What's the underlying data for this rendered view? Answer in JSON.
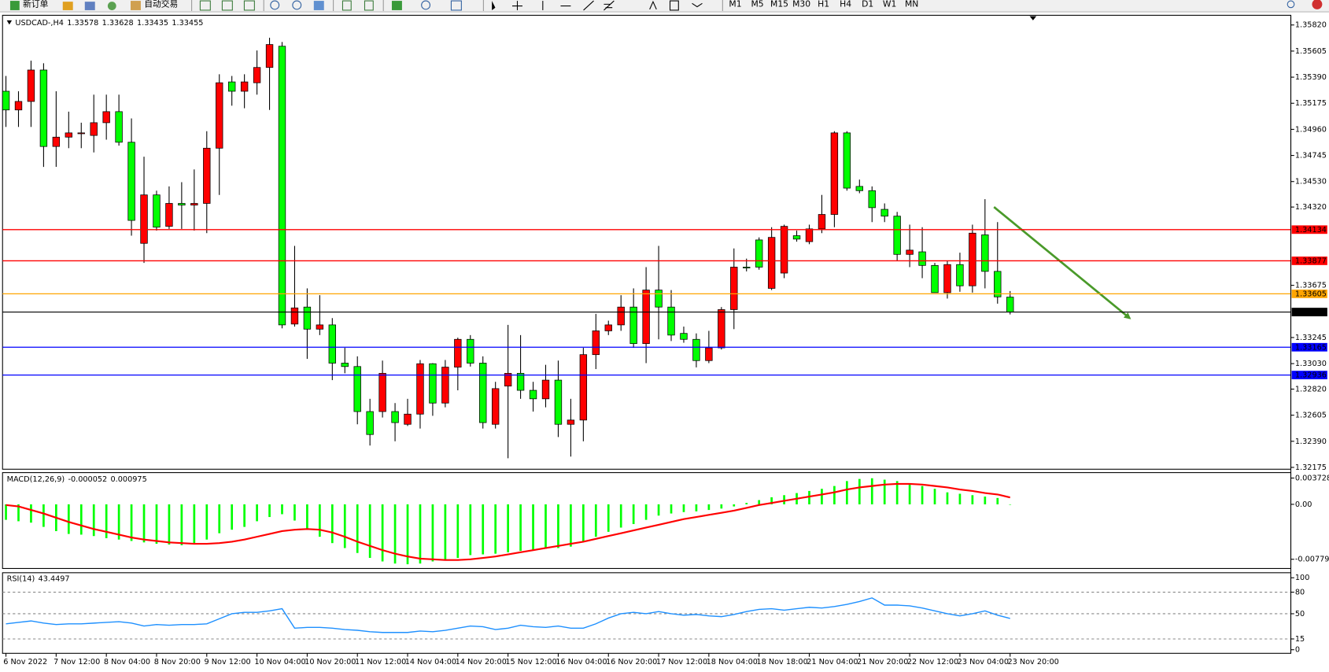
{
  "toolbar": {
    "buttons": [
      "新订单",
      "自动交易"
    ],
    "timeframes": [
      "M1",
      "M5",
      "M15",
      "M30",
      "H1",
      "H4",
      "D1",
      "W1",
      "MN"
    ]
  },
  "chart_data": [
    {
      "type": "candlestick",
      "title": "USDCAD-,H4",
      "categories": [
        "6 Nov 2022",
        null,
        null,
        null,
        "7 Nov 12:00",
        null,
        null,
        null,
        "8 Nov 04:00",
        null,
        null,
        null,
        "8 Nov 20:00",
        null,
        null,
        null,
        "9 Nov 12:00",
        null,
        null,
        null,
        "10 Nov 04:00",
        null,
        null,
        null,
        "10 Nov 20:00",
        null,
        null,
        null,
        "11 Nov 12:00",
        null,
        null,
        null,
        "14 Nov 04:00",
        null,
        null,
        null,
        "14 Nov 20:00",
        null,
        null,
        null,
        "15 Nov 12:00",
        null,
        null,
        null,
        "16 Nov 04:00",
        null,
        null,
        null,
        "16 Nov 20:00",
        null,
        null,
        null,
        "17 Nov 12:00",
        null,
        null,
        null,
        "18 Nov 04:00",
        null,
        null,
        null,
        "18 Nov 18:00",
        null,
        null,
        null,
        "21 Nov 04:00",
        null,
        null,
        null,
        "21 Nov 20:00",
        null,
        null,
        null,
        "22 Nov 12:00",
        null,
        null,
        null,
        "23 Nov 04:00",
        null,
        null,
        null,
        "23 Nov 20:00"
      ],
      "open": [
        1.35274,
        1.3512,
        1.3519,
        1.35449,
        1.34819,
        1.34896,
        1.34924,
        1.3491,
        1.35015,
        1.35106,
        1.34854,
        1.34021,
        1.3442,
        1.34161,
        1.3435,
        1.34336,
        1.3435,
        1.34805,
        1.35351,
        1.35274,
        1.35344,
        1.3547,
        1.35645,
        1.33356,
        1.33496,
        1.33314,
        1.33349,
        1.33034,
        1.33006,
        1.32635,
        1.32635,
        1.32635,
        1.3253,
        1.32614,
        1.33029,
        1.32705,
        1.33001,
        1.3323,
        1.33034,
        1.3253,
        1.32845,
        1.3295,
        1.3281,
        1.3274,
        1.32894,
        1.3253,
        1.32565,
        1.33104,
        1.333,
        1.33349,
        1.33496,
        1.33195,
        1.33636,
        1.33496,
        1.33279,
        1.3323,
        1.33055,
        1.3316,
        1.33475,
        1.33825,
        1.34049,
        1.3365,
        1.33776,
        1.34084,
        1.34035,
        1.3414,
        1.34259,
        1.34931,
        1.3449,
        1.34455,
        1.34301,
        1.34245,
        1.3393,
        1.33951,
        1.33839,
        1.33615,
        1.33846,
        1.33671,
        1.34091,
        1.3379,
        1.33578
      ],
      "high": [
        1.354,
        1.35274,
        1.35526,
        1.35505,
        1.35274,
        1.35106,
        1.35015,
        1.35246,
        1.35246,
        1.35246,
        1.3505,
        1.34735,
        1.34455,
        1.3449,
        1.34525,
        1.3463,
        1.34945,
        1.35414,
        1.354,
        1.35414,
        1.3561,
        1.35715,
        1.3568,
        1.34,
        1.3365,
        1.33594,
        1.33405,
        1.3316,
        1.3309,
        1.3274,
        1.33055,
        1.32705,
        1.3274,
        1.3306,
        1.33034,
        1.3306,
        1.33244,
        1.33265,
        1.3309,
        1.3288,
        1.33349,
        1.33265,
        1.3288,
        1.3302,
        1.33055,
        1.3274,
        1.3316,
        1.3344,
        1.33384,
        1.33594,
        1.3365,
        1.33825,
        1.34,
        1.33636,
        1.33335,
        1.33279,
        1.333,
        1.33496,
        1.33979,
        1.33895,
        1.3407,
        1.34154,
        1.34175,
        1.34126,
        1.34175,
        1.3442,
        1.34945,
        1.34945,
        1.34546,
        1.3449,
        1.3435,
        1.3428,
        1.34175,
        1.34154,
        1.3386,
        1.33874,
        1.33944,
        1.34175,
        1.34385,
        1.34196,
        1.33628
      ],
      "low": [
        1.3498,
        1.3498,
        1.3498,
        1.34651,
        1.34651,
        1.34805,
        1.34805,
        1.3477,
        1.34875,
        1.34826,
        1.34084,
        1.3386,
        1.34126,
        1.3414,
        1.3414,
        1.34126,
        1.34105,
        1.3442,
        1.35155,
        1.35134,
        1.35246,
        1.3512,
        1.33321,
        1.33335,
        1.33069,
        1.33265,
        1.32894,
        1.3295,
        1.3253,
        1.32355,
        1.32586,
        1.3239,
        1.32516,
        1.32495,
        1.326,
        1.3267,
        1.3281,
        1.33006,
        1.32495,
        1.32495,
        1.3225,
        1.3274,
        1.32635,
        1.3267,
        1.32425,
        1.32264,
        1.3239,
        1.32985,
        1.33265,
        1.333,
        1.3316,
        1.33034,
        1.3323,
        1.33216,
        1.33202,
        1.32999,
        1.33034,
        1.33146,
        1.33314,
        1.3379,
        1.33804,
        1.33636,
        1.33734,
        1.34035,
        1.34014,
        1.34105,
        1.34154,
        1.34455,
        1.34434,
        1.34196,
        1.34196,
        1.33874,
        1.33825,
        1.33734,
        1.33615,
        1.33566,
        1.33622,
        1.33615,
        1.3365,
        1.33524,
        1.33435
      ],
      "close": [
        1.3512,
        1.3519,
        1.35449,
        1.34819,
        1.34896,
        1.34931,
        1.34931,
        1.35015,
        1.35106,
        1.34854,
        1.3421,
        1.3442,
        1.34154,
        1.3435,
        1.34336,
        1.3435,
        1.34805,
        1.35344,
        1.35274,
        1.35351,
        1.3547,
        1.35659,
        1.33349,
        1.33489,
        1.33314,
        1.33349,
        1.33034,
        1.33006,
        1.32635,
        1.32446,
        1.3295,
        1.32544,
        1.32614,
        1.33029,
        1.32705,
        1.33001,
        1.3323,
        1.33034,
        1.32544,
        1.32824,
        1.3295,
        1.3281,
        1.3274,
        1.32894,
        1.3253,
        1.32565,
        1.33104,
        1.333,
        1.33349,
        1.33496,
        1.33195,
        1.33636,
        1.33496,
        1.33265,
        1.3323,
        1.33055,
        1.3316,
        1.33475,
        1.33825,
        1.33818,
        1.33825,
        1.3407,
        1.34161,
        1.34056,
        1.3414,
        1.34259,
        1.34931,
        1.34476,
        1.34455,
        1.34315,
        1.34245,
        1.3393,
        1.33965,
        1.33839,
        1.33615,
        1.33846,
        1.33671,
        1.34105,
        1.3379,
        1.3358,
        1.33455
      ],
      "up_color": "#ff0000",
      "down_color": "#00ff00",
      "ylim": [
        1.3216,
        1.359
      ],
      "yticks": [
        {
          "value": 1.3582,
          "label": "1.35820"
        },
        1.35605,
        {
          "value": 1.3539,
          "label": "1.35390"
        },
        1.35175,
        {
          "value": 1.3496,
          "label": "1.34960"
        },
        1.34745,
        {
          "value": 1.3453,
          "label": "1.34530"
        },
        {
          "value": 1.3432,
          "label": "1.34320"
        },
        1.33675,
        1.33245,
        {
          "value": 1.3303,
          "label": "1.33030"
        },
        {
          "value": 1.3282,
          "label": "1.32820"
        },
        1.32605,
        {
          "value": 1.3239,
          "label": "1.32390"
        },
        1.32175
      ],
      "hlines": [
        {
          "value": 1.34134,
          "color": "#ff0000"
        },
        {
          "value": 1.33877,
          "color": "#ff0000"
        },
        {
          "value": 1.33605,
          "color": "#ffa500"
        },
        {
          "value": 1.33165,
          "color": "#0000ff"
        },
        {
          "value": 1.32936,
          "color": "#0000ff"
        }
      ]
    },
    {
      "type": "combo",
      "title": "MACD(12,26,9)",
      "series": [
        {
          "type": "bar",
          "color": "#00ff00",
          "values": [
            -0.0022,
            -0.0024,
            -0.0026,
            -0.0032,
            -0.0038,
            -0.0042,
            -0.0043,
            -0.0045,
            -0.0048,
            -0.005,
            -0.0052,
            -0.0054,
            -0.0056,
            -0.0057,
            -0.0058,
            -0.0056,
            -0.005,
            -0.0041,
            -0.0036,
            -0.0032,
            -0.0024,
            -0.0018,
            -0.0014,
            -0.0023,
            -0.0035,
            -0.0046,
            -0.0055,
            -0.0062,
            -0.0069,
            -0.0076,
            -0.0081,
            -0.0084,
            -0.0085,
            -0.0084,
            -0.0081,
            -0.0079,
            -0.0076,
            -0.0072,
            -0.0071,
            -0.007,
            -0.0068,
            -0.0066,
            -0.0065,
            -0.0063,
            -0.0062,
            -0.006,
            -0.0053,
            -0.0046,
            -0.0039,
            -0.0033,
            -0.0028,
            -0.0022,
            -0.0016,
            -0.0013,
            -0.0011,
            -0.001,
            -0.0008,
            -0.0006,
            -0.0003,
            0.0002,
            0.0006,
            0.001,
            0.0013,
            0.0016,
            0.0019,
            0.0022,
            0.0026,
            0.0033,
            0.0036,
            0.0037,
            0.0035,
            0.0033,
            0.003,
            0.0026,
            0.0022,
            0.0017,
            0.0015,
            0.0013,
            0.0011,
            0.0009,
            -5.2e-05
          ]
        },
        {
          "type": "line",
          "color": "#ff0000",
          "values": [
            -0.0001,
            -0.0003,
            -0.0008,
            -0.0013,
            -0.0019,
            -0.0025,
            -0.003,
            -0.0035,
            -0.0039,
            -0.0043,
            -0.0047,
            -0.005,
            -0.0052,
            -0.0054,
            -0.0055,
            -0.0056,
            -0.0056,
            -0.0055,
            -0.0053,
            -0.005,
            -0.0046,
            -0.0042,
            -0.0038,
            -0.0036,
            -0.0035,
            -0.0036,
            -0.004,
            -0.0046,
            -0.0053,
            -0.0059,
            -0.0065,
            -0.007,
            -0.0074,
            -0.0077,
            -0.0078,
            -0.0079,
            -0.0079,
            -0.0078,
            -0.0076,
            -0.0074,
            -0.0071,
            -0.0068,
            -0.0065,
            -0.0062,
            -0.0059,
            -0.0056,
            -0.0053,
            -0.0049,
            -0.0045,
            -0.0041,
            -0.0037,
            -0.0033,
            -0.0029,
            -0.0025,
            -0.0021,
            -0.0018,
            -0.0015,
            -0.0012,
            -0.0009,
            -0.0005,
            -0.0001,
            0.0002,
            0.0005,
            0.0008,
            0.0011,
            0.0014,
            0.0017,
            0.0021,
            0.0024,
            0.0026,
            0.0028,
            0.0029,
            0.0029,
            0.0028,
            0.0026,
            0.0024,
            0.0021,
            0.0019,
            0.0016,
            0.0014,
            0.000975
          ]
        }
      ],
      "ylim": [
        -0.0091,
        0.0045
      ],
      "yticks": [
        0.003728,
        {
          "value": 0,
          "label": "0.00"
        },
        -0.007792
      ]
    },
    {
      "type": "line",
      "title": "RSI(14)",
      "color": "#1e90ff",
      "values": [
        36,
        38,
        40,
        37,
        35,
        36,
        36,
        37,
        38,
        39,
        37,
        33,
        35,
        34,
        35,
        35,
        36,
        43,
        50,
        52,
        52,
        54,
        57,
        30,
        31,
        31,
        30,
        28,
        27,
        25,
        24,
        24,
        24,
        26,
        25,
        27,
        30,
        33,
        32,
        28,
        30,
        34,
        32,
        31,
        33,
        30,
        30,
        36,
        44,
        50,
        52,
        50,
        53,
        50,
        48,
        49,
        47,
        46,
        49,
        53,
        56,
        57,
        55,
        57,
        59,
        58,
        60,
        63,
        67,
        72,
        62,
        62,
        61,
        58,
        54,
        50,
        47,
        50,
        54,
        48,
        43.4497
      ],
      "ylim": [
        -5,
        107
      ],
      "yticks": [
        100,
        80,
        50,
        15,
        0
      ],
      "level_lines": true
    }
  ]
}
